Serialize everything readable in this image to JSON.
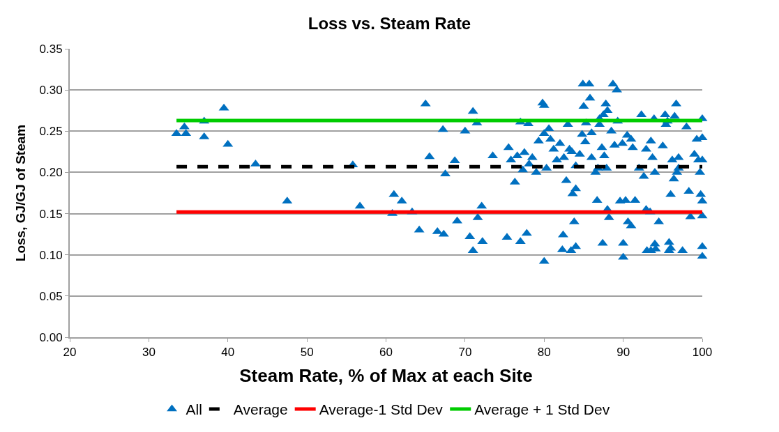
{
  "chart_data": {
    "type": "scatter",
    "title": "Loss vs. Steam Rate",
    "xlabel": "Steam Rate, % of Max at each Site",
    "ylabel": "Loss, GJ/GJ of Steam",
    "xlim": [
      20,
      100
    ],
    "xticks": [
      20,
      30,
      40,
      50,
      60,
      70,
      80,
      90,
      100
    ],
    "ylim": [
      0,
      0.35
    ],
    "yticks": [
      {
        "value": 0,
        "label": "0.00"
      },
      {
        "value": 0.05,
        "label": "0.05"
      },
      {
        "value": 0.1,
        "label": "0.10"
      },
      {
        "value": 0.15,
        "label": "0.15"
      },
      {
        "value": 0.2,
        "label": "0.20"
      },
      {
        "value": 0.25,
        "label": "0.25"
      },
      {
        "value": 0.3,
        "label": "0.30"
      },
      {
        "value": 0.35,
        "label": "0.35"
      }
    ],
    "grid": "y",
    "legend": "bottom",
    "series": [
      {
        "name": "All",
        "marker": "triangle",
        "color": "#0070c0",
        "x": [
          33.5,
          34.5,
          34.7,
          37,
          37,
          39.5,
          40,
          43.5,
          47.5,
          55.8,
          56.7,
          60.8,
          61,
          62,
          63.3,
          64.2,
          65,
          65.5,
          66.5,
          67.2,
          67.3,
          67.5,
          68.7,
          69,
          70,
          70.6,
          71,
          71,
          71.5,
          71.6,
          72.1,
          72.2,
          73.5,
          75.3,
          75.5,
          75.8,
          76.3,
          76.6,
          77,
          77,
          77.3,
          77.5,
          77.8,
          78,
          78.1,
          78.5,
          79,
          79.3,
          79.8,
          80,
          80,
          80,
          80.3,
          80.6,
          80.8,
          81.2,
          81.6,
          82,
          82.3,
          82.4,
          82.5,
          82.8,
          83,
          83.2,
          83.4,
          83.5,
          83.6,
          83.8,
          84,
          84,
          84,
          84.5,
          84.8,
          84.9,
          85,
          85.2,
          85.3,
          85.7,
          85.8,
          86,
          86,
          86.5,
          86.7,
          86.8,
          87,
          87,
          87.3,
          87.4,
          87.5,
          87.6,
          87.8,
          87.9,
          88,
          88,
          88.2,
          88.5,
          88.7,
          88.9,
          89.2,
          89.3,
          89.6,
          89.9,
          90,
          90,
          90.3,
          90.5,
          90.6,
          91,
          91,
          91.2,
          91.5,
          92,
          92.3,
          92.6,
          92.9,
          92.9,
          93,
          93.4,
          93.5,
          93.5,
          93.7,
          93.9,
          94,
          94,
          94.1,
          94.5,
          95,
          95.3,
          95.4,
          95.6,
          95.8,
          95.8,
          96,
          96,
          96.2,
          96.4,
          96.5,
          96.7,
          96.8,
          97,
          97,
          97.5,
          98,
          98.3,
          98.5,
          99,
          99.3,
          99.5,
          99.7,
          99.8,
          100,
          100,
          100,
          100,
          100,
          100,
          100
        ],
        "values": [
          0.247,
          0.255,
          0.247,
          0.262,
          0.243,
          0.278,
          0.234,
          0.21,
          0.165,
          0.209,
          0.159,
          0.15,
          0.173,
          0.165,
          0.152,
          0.13,
          0.283,
          0.219,
          0.128,
          0.252,
          0.125,
          0.198,
          0.214,
          0.141,
          0.25,
          0.122,
          0.274,
          0.105,
          0.26,
          0.145,
          0.159,
          0.116,
          0.22,
          0.121,
          0.23,
          0.215,
          0.188,
          0.22,
          0.261,
          0.116,
          0.203,
          0.224,
          0.126,
          0.259,
          0.21,
          0.218,
          0.2,
          0.238,
          0.284,
          0.247,
          0.281,
          0.092,
          0.205,
          0.253,
          0.24,
          0.228,
          0.215,
          0.235,
          0.106,
          0.124,
          0.218,
          0.19,
          0.258,
          0.228,
          0.105,
          0.225,
          0.174,
          0.14,
          0.18,
          0.11,
          0.208,
          0.222,
          0.246,
          0.307,
          0.28,
          0.237,
          0.26,
          0.307,
          0.29,
          0.248,
          0.218,
          0.2,
          0.166,
          0.205,
          0.258,
          0.265,
          0.23,
          0.114,
          0.27,
          0.22,
          0.283,
          0.205,
          0.275,
          0.155,
          0.145,
          0.25,
          0.307,
          0.233,
          0.3,
          0.262,
          0.165,
          0.235,
          0.114,
          0.097,
          0.166,
          0.245,
          0.14,
          0.24,
          0.135,
          0.23,
          0.166,
          0.205,
          0.27,
          0.195,
          0.228,
          0.155,
          0.105,
          0.152,
          0.238,
          0.105,
          0.218,
          0.265,
          0.113,
          0.2,
          0.107,
          0.14,
          0.232,
          0.27,
          0.258,
          0.262,
          0.115,
          0.105,
          0.173,
          0.108,
          0.215,
          0.192,
          0.268,
          0.283,
          0.2,
          0.218,
          0.205,
          0.105,
          0.255,
          0.177,
          0.146,
          0.222,
          0.24,
          0.215,
          0.2,
          0.173,
          0.265,
          0.242,
          0.215,
          0.165,
          0.147,
          0.11,
          0.098
        ]
      },
      {
        "name": "Average",
        "type": "line",
        "line_style": "dashed",
        "color": "#000000",
        "x": [
          33.5,
          100
        ],
        "values": [
          0.207,
          0.207
        ]
      },
      {
        "name": "Average-1 Std Dev",
        "type": "line",
        "line_style": "solid",
        "color": "#ff0000",
        "x": [
          33.5,
          100
        ],
        "values": [
          0.152,
          0.152
        ]
      },
      {
        "name": "Average + 1 Std Dev",
        "type": "line",
        "line_style": "solid",
        "color": "#00cc00",
        "x": [
          33.5,
          100
        ],
        "values": [
          0.263,
          0.263
        ]
      }
    ]
  }
}
